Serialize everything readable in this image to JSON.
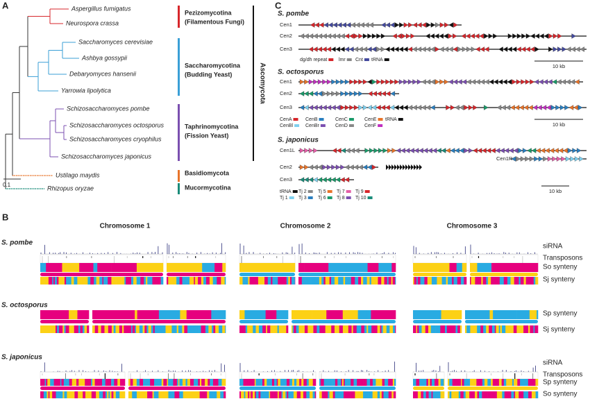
{
  "panel_a": {
    "label": "A",
    "taxa": [
      "Aspergillus fumigatus",
      "Neurospora crassa",
      "Saccharomyces cerevisiae",
      "Ashbya gossypii",
      "Debaryomyces hansenii",
      "Yarrowia lipolytica",
      "Schizosaccharomyces pombe",
      "Schizosaccharomyces octosporus",
      "Schizosaccharomyces cryophilus",
      "Schizosaccharomyces japonicus",
      "Ustilago maydis",
      "Rhizopus oryzae"
    ],
    "clades": [
      [
        "Pezizomycotina",
        "(Filamentous Fungi)"
      ],
      [
        "Saccharomycotina",
        "(Budding Yeast)"
      ],
      [
        "Taphrinomycotina",
        "(Fission Yeast)"
      ],
      [
        "Basidiomycota"
      ],
      [
        "Mucormycotina"
      ]
    ],
    "phylum": "Ascomycota",
    "scale": "0.1"
  },
  "panel_b": {
    "label": "B",
    "chromosomes": [
      "Chromosome 1",
      "Chromosome 2",
      "Chromosome 3"
    ],
    "species": [
      {
        "name": "S. pombe",
        "tracks": [
          "siRNA",
          "Transposons",
          "So synteny",
          "Sj synteny"
        ]
      },
      {
        "name": "S. octosporus",
        "tracks": [
          "Sp synteny",
          "Sj synteny"
        ]
      },
      {
        "name": "S. japonicus",
        "tracks": [
          "siRNA",
          "Transposons",
          "Sp synteny",
          "So synteny"
        ]
      }
    ]
  },
  "panel_c": {
    "label": "C",
    "species": [
      {
        "name": "S. pombe",
        "centromeres": [
          "Cen1",
          "Cen2",
          "Cen3"
        ],
        "legend": [
          "dg/dh repeat",
          "lmr",
          "Cnt",
          "tRNA"
        ],
        "scale": "10 kb"
      },
      {
        "name": "S. octosporus",
        "centromeres": [
          "Cen1",
          "Cen2",
          "Cen3"
        ],
        "legend": [
          "CenA",
          "CenB",
          "CenC",
          "CenE",
          "tRNA",
          "CenBl",
          "CenBr",
          "CenD",
          "CenF"
        ],
        "scale": "10 kb"
      },
      {
        "name": "S. japonicus",
        "centromeres": [
          "Cen1L",
          "Cen1R",
          "Cen2",
          "Cen3"
        ],
        "legend": [
          "tRNA",
          "Tj 2",
          "Tj 5",
          "Tj 7",
          "Tj 9",
          "Tj 1",
          "Tj 3",
          "Tj 6",
          "Tj 8",
          "Tj 10"
        ],
        "scale": "10 kb"
      }
    ]
  }
}
